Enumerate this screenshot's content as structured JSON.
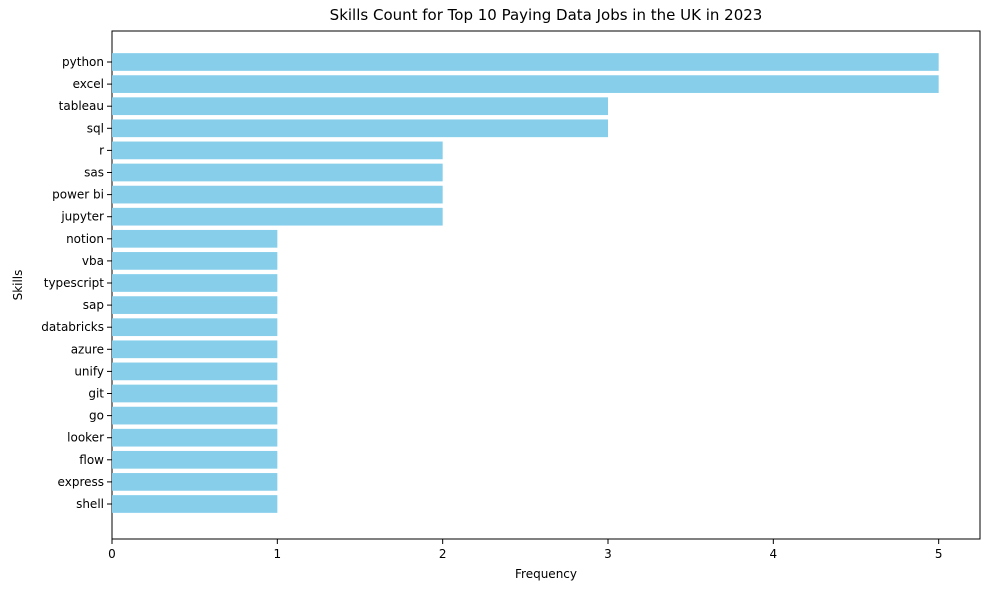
{
  "chart_data": {
    "type": "bar",
    "orientation": "horizontal",
    "title": "Skills Count for Top 10 Paying Data Jobs in the UK in 2023",
    "xlabel": "Frequency",
    "ylabel": "Skills",
    "categories": [
      "python",
      "excel",
      "tableau",
      "sql",
      "r",
      "sas",
      "power bi",
      "jupyter",
      "notion",
      "vba",
      "typescript",
      "sap",
      "databricks",
      "azure",
      "unify",
      "git",
      "go",
      "looker",
      "flow",
      "express",
      "shell"
    ],
    "values": [
      5,
      5,
      3,
      3,
      2,
      2,
      2,
      2,
      1,
      1,
      1,
      1,
      1,
      1,
      1,
      1,
      1,
      1,
      1,
      1,
      1
    ],
    "x_ticks": [
      "0",
      "1",
      "2",
      "3",
      "4",
      "5"
    ],
    "xlim": [
      0,
      5.25
    ],
    "bar_color": "#87ceeb",
    "grid": false,
    "legend": "none"
  }
}
